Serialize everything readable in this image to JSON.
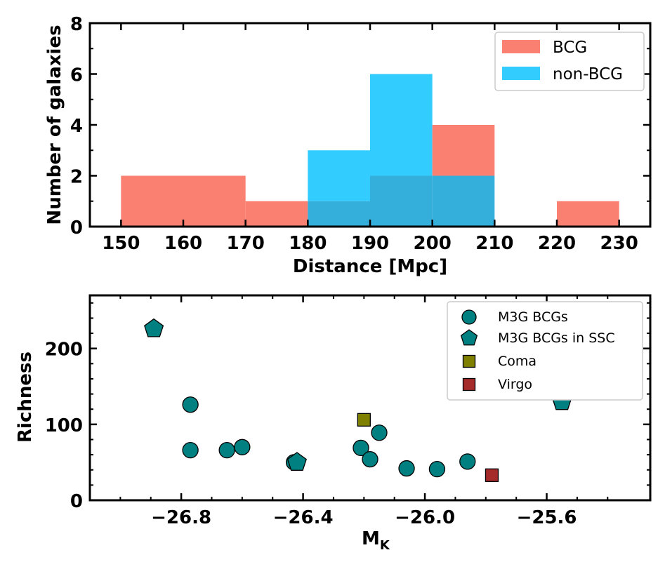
{
  "chart_data": [
    {
      "type": "histogram",
      "title": "",
      "xlabel": "Distance [Mpc]",
      "ylabel": "Number of galaxies",
      "xlim": [
        145,
        235
      ],
      "ylim": [
        0,
        8
      ],
      "x_ticks": [
        "150",
        "160",
        "170",
        "180",
        "190",
        "200",
        "210",
        "220",
        "230"
      ],
      "y_ticks": [
        "0",
        "2",
        "4",
        "6",
        "8"
      ],
      "bin_edges": [
        150,
        160,
        170,
        180,
        190,
        200,
        210,
        220,
        230
      ],
      "series": [
        {
          "name": "BCG",
          "color": "#fa8072",
          "counts": [
            2,
            2,
            1,
            1,
            2,
            4,
            0,
            1
          ]
        },
        {
          "name": "non-BCG",
          "color": "#33ccff",
          "counts": [
            0,
            0,
            0,
            3,
            6,
            2,
            0,
            0
          ]
        }
      ],
      "overlap_color": "#34aedb",
      "legend_position": "top-right",
      "grid": false
    },
    {
      "type": "scatter",
      "title": "",
      "xlabel": "M",
      "xlabel_sub": "K",
      "ylabel": "Richness",
      "xlim": [
        -27.1,
        -25.26
      ],
      "ylim": [
        0,
        270
      ],
      "x_ticks": [
        "-26.8",
        "-26.4",
        "-26.0",
        "-25.6"
      ],
      "y_ticks": [
        "0",
        "100",
        "200"
      ],
      "series": [
        {
          "name": "M3G BCGs",
          "marker": "circle",
          "color": "#008080",
          "points": [
            [
              -26.77,
              126
            ],
            [
              -26.77,
              66
            ],
            [
              -26.65,
              66
            ],
            [
              -26.6,
              70
            ],
            [
              -26.43,
              50
            ],
            [
              -26.21,
              69
            ],
            [
              -26.18,
              54
            ],
            [
              -26.15,
              89
            ],
            [
              -26.06,
              42
            ],
            [
              -25.96,
              41
            ],
            [
              -25.86,
              51
            ]
          ]
        },
        {
          "name": "M3G BCGs in SSC",
          "marker": "pentagon",
          "color": "#008080",
          "points": [
            [
              -26.89,
              226
            ],
            [
              -26.42,
              50
            ],
            [
              -25.55,
              130
            ]
          ]
        },
        {
          "name": "Coma",
          "marker": "square",
          "color": "#808000",
          "points": [
            [
              -26.2,
              106
            ]
          ]
        },
        {
          "name": "Virgo",
          "marker": "square",
          "color": "#a52a2a",
          "points": [
            [
              -25.78,
              33
            ]
          ]
        }
      ],
      "legend_position": "top-right",
      "grid": false
    }
  ]
}
